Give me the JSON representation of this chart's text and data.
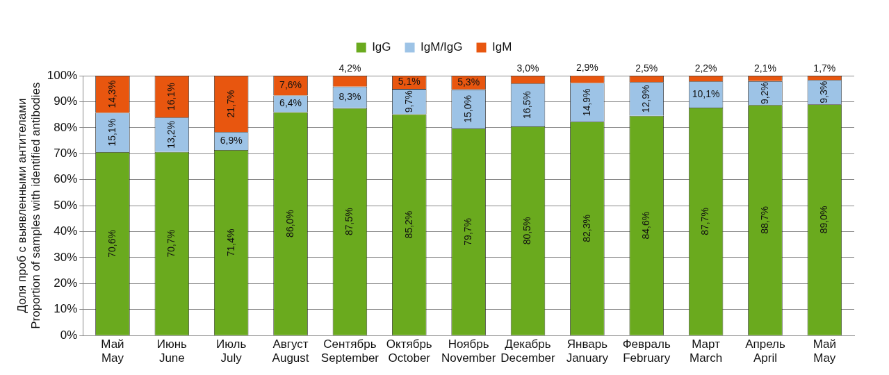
{
  "chart_data": {
    "type": "bar",
    "stacked": true,
    "ylabel": "Доля проб с выявленными антителами\nProportion of samples with identified antibodies",
    "categories": [
      "Май\nMay",
      "Июнь\nJune",
      "Июль\nJuly",
      "Август\nAugust",
      "Сентябрь\nSeptember",
      "Октябрь\nOctober",
      "Ноябрь\nNovember",
      "Декабрь\nDecember",
      "Январь\nJanuary",
      "Февраль\nFebruary",
      "Март\nMarch",
      "Апрель\nApril",
      "Май\nMay"
    ],
    "series": [
      {
        "name": "IgG",
        "color": "#6aaa1e",
        "values": [
          70.6,
          70.7,
          71.4,
          86.0,
          87.5,
          85.2,
          79.7,
          80.5,
          82.3,
          84.6,
          87.7,
          88.7,
          89.0
        ],
        "value_labels": [
          "70,6%",
          "70,7%",
          "71,4%",
          "86,0%",
          "87,5%",
          "85,2%",
          "79,7%",
          "80,5%",
          "82,3%",
          "84,6%",
          "87,7%",
          "88,7%",
          "89,0%"
        ]
      },
      {
        "name": "IgM/IgG",
        "color": "#9dc3e6",
        "values": [
          15.1,
          13.2,
          6.9,
          6.4,
          8.3,
          9.7,
          15.0,
          16.5,
          14.9,
          12.9,
          10.1,
          9.2,
          9.3
        ],
        "value_labels": [
          "15,1%",
          "13,2%",
          "6,9%",
          "6,4%",
          "8,3%",
          "9,7%",
          "15,0%",
          "16,5%",
          "14,9%",
          "12,9%",
          "10,1%",
          "9,2%",
          "9,3%"
        ]
      },
      {
        "name": "IgM",
        "color": "#e8560f",
        "values": [
          14.3,
          16.1,
          21.7,
          7.6,
          4.2,
          5.1,
          5.3,
          3.0,
          2.9,
          2.5,
          2.2,
          2.1,
          1.7
        ],
        "value_labels": [
          "14,3%",
          "16,1%",
          "21,7%",
          "7,6%",
          "4,2%",
          "5,1%",
          "5,3%",
          "3,0%",
          "2,9%",
          "2,5%",
          "2,2%",
          "2,1%",
          "1,7%"
        ]
      }
    ],
    "ylim": [
      0,
      100
    ],
    "yticks": [
      {
        "value": 0,
        "label": "0%"
      },
      {
        "value": 10,
        "label": "10%"
      },
      {
        "value": 20,
        "label": "20%"
      },
      {
        "value": 30,
        "label": "30%"
      },
      {
        "value": 40,
        "label": "40%"
      },
      {
        "value": 50,
        "label": "50%"
      },
      {
        "value": 60,
        "label": "60%"
      },
      {
        "value": 70,
        "label": "70%"
      },
      {
        "value": 80,
        "label": "80%"
      },
      {
        "value": 90,
        "label": "90%"
      },
      {
        "value": 100,
        "label": "100%"
      }
    ],
    "grid": "y",
    "legend": "top"
  }
}
